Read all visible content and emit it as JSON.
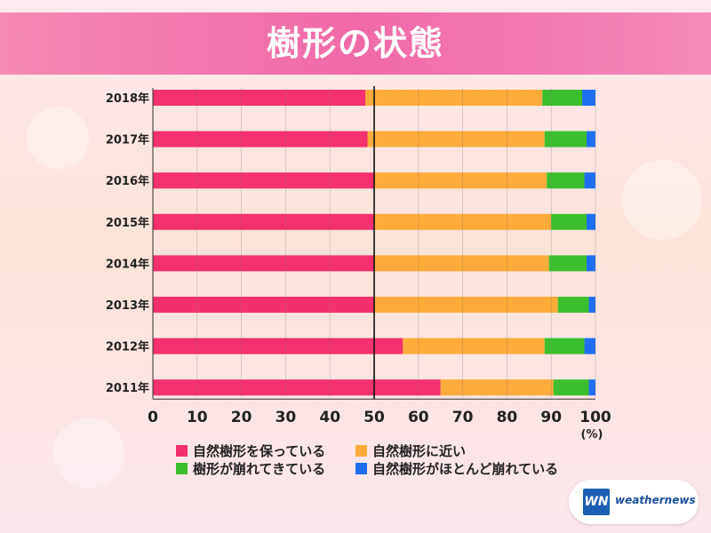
{
  "title": "樹形の状態",
  "colors": {
    "good": "#f5306e",
    "near": "#fdab3a",
    "collapsing": "#3cbf2e",
    "mostly_collapsed": "#1f6ff2",
    "bar_bg": "#fff1d9"
  },
  "chart_data": {
    "type": "bar",
    "orientation": "horizontal",
    "stacked": true,
    "categories": [
      "2018年",
      "2017年",
      "2016年",
      "2015年",
      "2014年",
      "2013年",
      "2012年",
      "2011年"
    ],
    "series": [
      {
        "name": "自然樹形を保っている",
        "color_key": "good",
        "values": [
          48,
          48.5,
          50,
          50,
          50,
          50,
          56.5,
          65
        ]
      },
      {
        "name": "自然樹形に近い",
        "color_key": "near",
        "values": [
          40,
          40,
          39,
          40,
          39.5,
          41.5,
          32,
          25.5
        ]
      },
      {
        "name": "樹形が崩れてきている",
        "color_key": "collapsing",
        "values": [
          9,
          9.5,
          8.5,
          8,
          8.5,
          7,
          9,
          8
        ]
      },
      {
        "name": "自然樹形がほとんど崩れている",
        "color_key": "mostly_collapsed",
        "values": [
          3,
          2,
          2.5,
          2,
          2,
          1.5,
          2.5,
          1.5
        ]
      }
    ],
    "xlim": [
      0,
      100
    ],
    "xticks": [
      "0",
      "10",
      "20",
      "30",
      "40",
      "50",
      "60",
      "70",
      "80",
      "90",
      "100"
    ],
    "xunit": "(%)",
    "reference_line": 50,
    "grid": true
  },
  "logo": {
    "mark": "WN",
    "text": "weathernews"
  }
}
